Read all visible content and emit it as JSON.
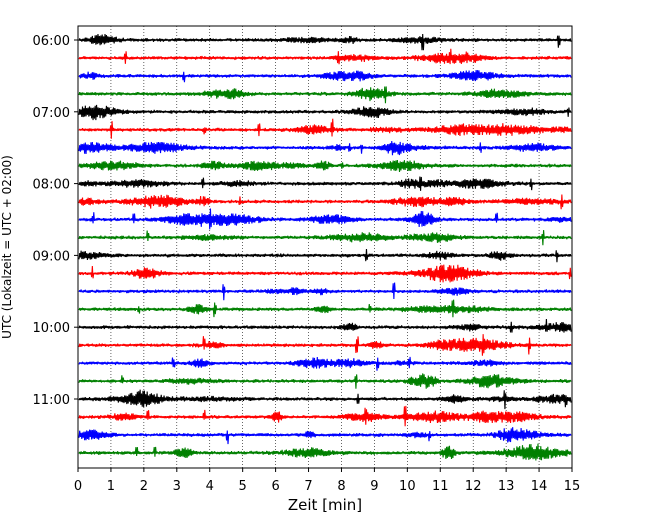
{
  "chart_data": {
    "type": "line",
    "title": "",
    "xlabel": "Zeit  [min]",
    "ylabel": "UTC (Lokalzeit = UTC + 02:00)",
    "xlim": [
      0,
      15
    ],
    "x_ticks": [
      0,
      1,
      2,
      3,
      4,
      5,
      6,
      7,
      8,
      9,
      10,
      11,
      12,
      13,
      14,
      15
    ],
    "y_tick_labels": [
      "06:00",
      "07:00",
      "08:00",
      "09:00",
      "10:00",
      "11:00"
    ],
    "grid": "vertical dotted at each minute",
    "start_time": "06:00",
    "trace_interval_min": 15,
    "trace_colors": [
      "#000000",
      "#ff0000",
      "#0000ff",
      "#008000"
    ],
    "traces": [
      {
        "start": "06:00",
        "color": "#000000"
      },
      {
        "start": "06:15",
        "color": "#ff0000"
      },
      {
        "start": "06:30",
        "color": "#0000ff"
      },
      {
        "start": "06:45",
        "color": "#008000"
      },
      {
        "start": "07:00",
        "color": "#000000"
      },
      {
        "start": "07:15",
        "color": "#ff0000"
      },
      {
        "start": "07:30",
        "color": "#0000ff"
      },
      {
        "start": "07:45",
        "color": "#008000"
      },
      {
        "start": "08:00",
        "color": "#000000"
      },
      {
        "start": "08:15",
        "color": "#ff0000"
      },
      {
        "start": "08:30",
        "color": "#0000ff"
      },
      {
        "start": "08:45",
        "color": "#008000"
      },
      {
        "start": "09:00",
        "color": "#000000"
      },
      {
        "start": "09:15",
        "color": "#ff0000"
      },
      {
        "start": "09:30",
        "color": "#0000ff"
      },
      {
        "start": "09:45",
        "color": "#008000"
      },
      {
        "start": "10:00",
        "color": "#000000"
      },
      {
        "start": "10:15",
        "color": "#ff0000"
      },
      {
        "start": "10:30",
        "color": "#0000ff"
      },
      {
        "start": "10:45",
        "color": "#008000"
      },
      {
        "start": "11:00",
        "color": "#000000"
      },
      {
        "start": "11:15",
        "color": "#ff0000"
      },
      {
        "start": "11:30",
        "color": "#0000ff"
      },
      {
        "start": "11:45",
        "color": "#008000"
      }
    ]
  }
}
